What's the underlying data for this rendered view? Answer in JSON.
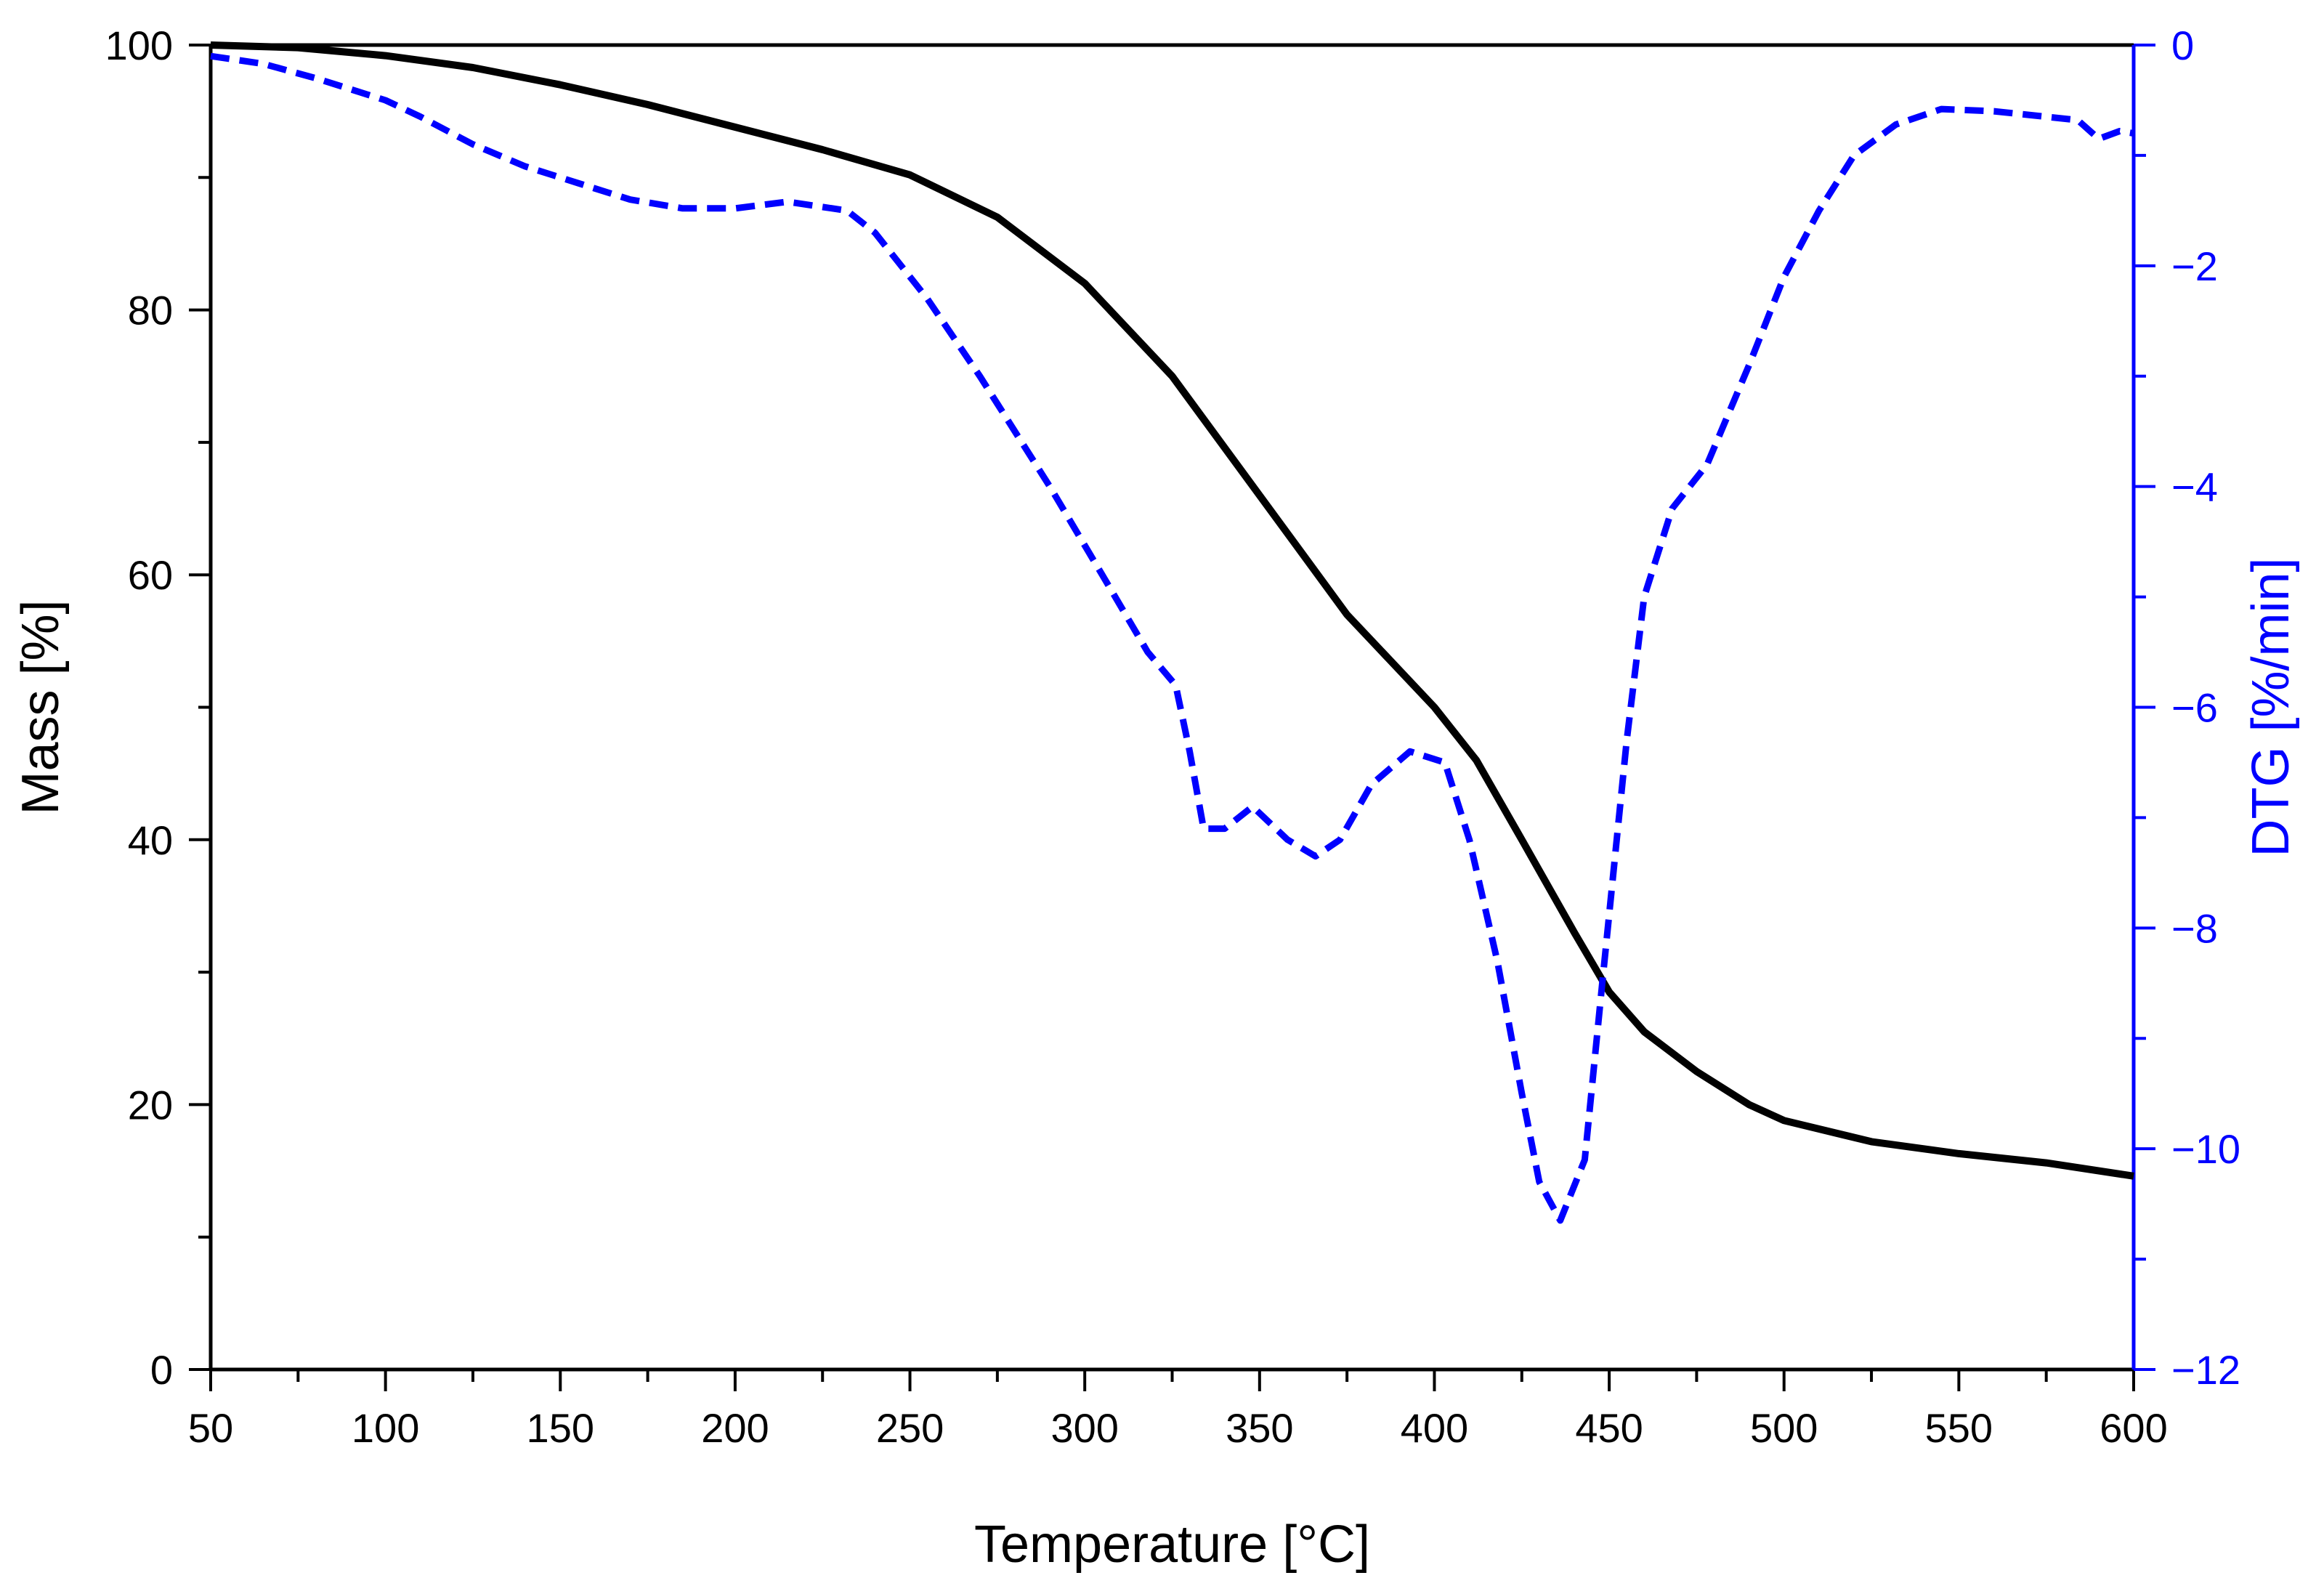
{
  "chart_data": {
    "type": "line",
    "title": "",
    "xlabel": "Temperature [°C]",
    "ylabel_left": "Mass [%]",
    "ylabel_right": "DTG [%/min]",
    "xlim": [
      50,
      600
    ],
    "ylim_left": [
      0,
      100
    ],
    "ylim_right": [
      -12,
      0
    ],
    "x_ticks": [
      "50",
      "100",
      "150",
      "200",
      "250",
      "300",
      "350",
      "400",
      "450",
      "500",
      "550",
      "600"
    ],
    "x_tick_values": [
      50,
      100,
      150,
      200,
      250,
      300,
      350,
      400,
      450,
      500,
      550,
      600
    ],
    "y_left_ticks": [
      "0",
      "20",
      "40",
      "60",
      "80",
      "100"
    ],
    "y_left_tick_values": [
      0,
      20,
      40,
      60,
      80,
      100
    ],
    "y_right_ticks": [
      "−12",
      "−10",
      "−8",
      "−6",
      "−4",
      "−2",
      "0"
    ],
    "y_right_tick_values": [
      -12,
      -10,
      -8,
      -6,
      -4,
      -2,
      0
    ],
    "grid": false,
    "colors": {
      "mass": "#000000",
      "dtg": "#0000ff",
      "axis_left": "#000000",
      "axis_right": "#0000ff"
    },
    "series": [
      {
        "name": "Mass",
        "axis": "left",
        "style": "solid",
        "color": "#000000",
        "points": [
          [
            50,
            100
          ],
          [
            75,
            99.8
          ],
          [
            100,
            99.2
          ],
          [
            125,
            98.3
          ],
          [
            150,
            97
          ],
          [
            175,
            95.5
          ],
          [
            200,
            93.8
          ],
          [
            225,
            92.1
          ],
          [
            250,
            90.2
          ],
          [
            275,
            87
          ],
          [
            300,
            82
          ],
          [
            325,
            75
          ],
          [
            350,
            66
          ],
          [
            375,
            57
          ],
          [
            400,
            50
          ],
          [
            412,
            46
          ],
          [
            425,
            40
          ],
          [
            440,
            33
          ],
          [
            450,
            28.5
          ],
          [
            460,
            25.5
          ],
          [
            475,
            22.5
          ],
          [
            490,
            20
          ],
          [
            500,
            18.8
          ],
          [
            525,
            17.2
          ],
          [
            550,
            16.3
          ],
          [
            575,
            15.6
          ],
          [
            600,
            14.6
          ]
        ]
      },
      {
        "name": "DTG",
        "axis": "right",
        "style": "dashed",
        "color": "#0000ff",
        "points": [
          [
            50,
            -0.1
          ],
          [
            65,
            -0.17
          ],
          [
            80,
            -0.3
          ],
          [
            100,
            -0.5
          ],
          [
            110,
            -0.65
          ],
          [
            125,
            -0.9
          ],
          [
            140,
            -1.1
          ],
          [
            155,
            -1.25
          ],
          [
            170,
            -1.4
          ],
          [
            185,
            -1.48
          ],
          [
            200,
            -1.48
          ],
          [
            215,
            -1.42
          ],
          [
            232,
            -1.5
          ],
          [
            240,
            -1.7
          ],
          [
            255,
            -2.3
          ],
          [
            270,
            -3.0
          ],
          [
            290,
            -4.0
          ],
          [
            305,
            -4.8
          ],
          [
            318,
            -5.5
          ],
          [
            326,
            -5.8
          ],
          [
            330,
            -6.4
          ],
          [
            334,
            -7.1
          ],
          [
            340,
            -7.1
          ],
          [
            348,
            -6.9
          ],
          [
            358,
            -7.2
          ],
          [
            366,
            -7.35
          ],
          [
            373,
            -7.2
          ],
          [
            382,
            -6.7
          ],
          [
            393,
            -6.4
          ],
          [
            403,
            -6.5
          ],
          [
            410,
            -7.2
          ],
          [
            418,
            -8.3
          ],
          [
            425,
            -9.5
          ],
          [
            430,
            -10.3
          ],
          [
            436,
            -10.65
          ],
          [
            443,
            -10.1
          ],
          [
            448,
            -8.5
          ],
          [
            455,
            -6.3
          ],
          [
            460,
            -5.0
          ],
          [
            468,
            -4.2
          ],
          [
            478,
            -3.8
          ],
          [
            490,
            -2.9
          ],
          [
            500,
            -2.1
          ],
          [
            510,
            -1.5
          ],
          [
            520,
            -1.0
          ],
          [
            532,
            -0.72
          ],
          [
            545,
            -0.58
          ],
          [
            560,
            -0.6
          ],
          [
            575,
            -0.65
          ],
          [
            584,
            -0.68
          ],
          [
            590,
            -0.85
          ],
          [
            596,
            -0.78
          ],
          [
            600,
            -0.8
          ]
        ]
      }
    ]
  }
}
